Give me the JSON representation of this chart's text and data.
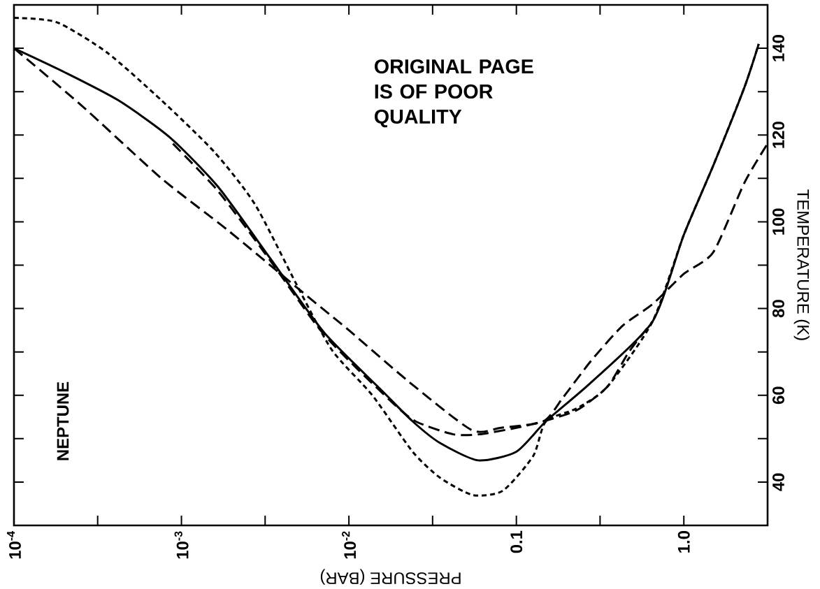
{
  "chart_data": {
    "type": "line",
    "xlabel": "PRESSURE (BAR)",
    "ylabel": "TEMPERATURE (K)",
    "log": "x",
    "xlim": [
      0.0001,
      3.1623
    ],
    "ylim": [
      30,
      150
    ],
    "xticks": [
      {
        "value": 0.0001,
        "label": "10$^{-4}$"
      },
      {
        "value": 0.000316,
        "label": null
      },
      {
        "value": 0.001,
        "label": "10$^{-3}$"
      },
      {
        "value": 0.00316,
        "label": null
      },
      {
        "value": 0.01,
        "label": "10$^{-2}$"
      },
      {
        "value": 0.0316,
        "label": null
      },
      {
        "value": 0.1,
        "label": "0.1"
      },
      {
        "value": 0.316,
        "label": null
      },
      {
        "value": 1.0,
        "label": "1.0"
      }
    ],
    "yticks": [
      40,
      {
        "value": 50,
        "label": null
      },
      60,
      {
        "value": 70,
        "label": null
      },
      80,
      {
        "value": 90,
        "label": null
      },
      100,
      {
        "value": 110,
        "label": null
      },
      120,
      {
        "value": 130,
        "label": null
      },
      140
    ],
    "grid": false,
    "marker": "none",
    "annotations": [
      "ORIGINAL PAGE IS OF POOR QUALITY",
      "NEPTUNE"
    ],
    "series": [
      {
        "color": "#000000",
        "line_style": "solid",
        "x": [
          0.0001,
          0.0002,
          0.00042,
          0.00085,
          0.00166,
          0.0034,
          0.0071,
          0.0158,
          0.024,
          0.035,
          0.059,
          0.1,
          0.15,
          0.28,
          0.65,
          1.0,
          1.5,
          2.3,
          2.8
        ],
        "values": [
          140,
          134.5,
          128,
          119.5,
          108,
          91.5,
          74.5,
          61,
          54,
          49,
          45,
          47,
          54,
          63,
          77,
          97,
          113,
          131,
          141
        ]
      },
      {
        "color": "#000000",
        "line_style": "dotted",
        "x": [
          0.0001,
          0.00018,
          0.00036,
          0.00076,
          0.00158,
          0.00275,
          0.0048,
          0.0079,
          0.0138,
          0.024,
          0.035,
          0.055,
          0.083,
          0.126,
          0.15,
          0.23,
          0.35,
          0.65,
          1.0,
          1.5,
          2.3,
          2.8
        ],
        "values": [
          147,
          146,
          139,
          128,
          116,
          104,
          86,
          70.5,
          60,
          47,
          41,
          37,
          38,
          46,
          54,
          57,
          62,
          77,
          97,
          113,
          131,
          141
        ]
      },
      {
        "color": "#000000",
        "line_style": "dashed",
        "x": [
          0.0001,
          0.00025,
          0.00076,
          0.0019,
          0.006,
          0.01,
          0.023,
          0.054,
          0.081,
          0.145,
          0.19,
          0.28,
          0.43,
          0.65,
          1.0,
          1.5,
          2.3,
          3.16
        ],
        "values": [
          140,
          127,
          110,
          98,
          82,
          75,
          63,
          52,
          52.5,
          54,
          59.5,
          68,
          76,
          81,
          88,
          93,
          109,
          118
        ]
      },
      {
        "color": "#000000",
        "line_style": "dashed",
        "x": [
          0.00089,
          0.00166,
          0.0034,
          0.0071,
          0.0174,
          0.025,
          0.042,
          0.06,
          0.1,
          0.145,
          0.23,
          0.35,
          0.47,
          0.65
        ],
        "values": [
          118,
          107,
          91,
          74,
          59,
          54,
          51,
          51,
          52.5,
          54,
          56.6,
          62,
          70,
          77
        ]
      }
    ]
  }
}
